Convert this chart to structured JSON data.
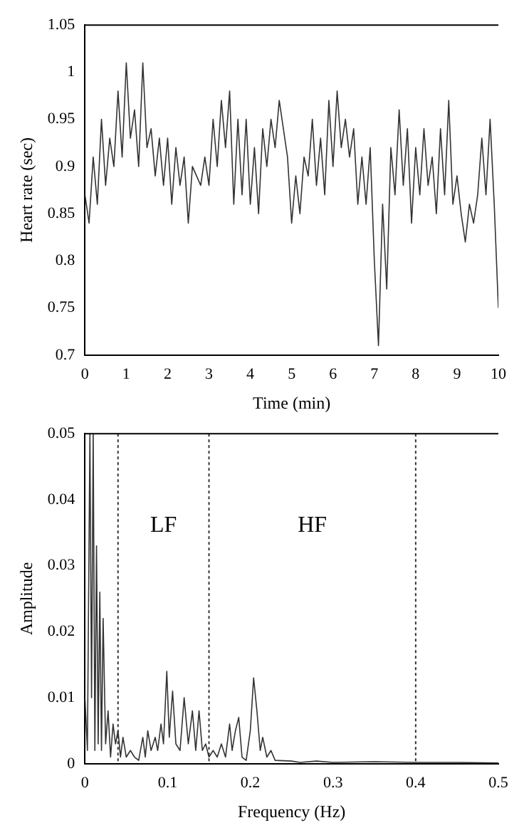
{
  "chart_data": [
    {
      "type": "line",
      "xlabel": "Time (min)",
      "ylabel": "Heart rate (sec)",
      "x": [
        0,
        0.1,
        0.2,
        0.3,
        0.4,
        0.5,
        0.6,
        0.7,
        0.8,
        0.9,
        1,
        1.1,
        1.2,
        1.3,
        1.4,
        1.5,
        1.6,
        1.7,
        1.8,
        1.9,
        2,
        2.1,
        2.2,
        2.3,
        2.4,
        2.5,
        2.6,
        2.7,
        2.8,
        2.9,
        3,
        3.1,
        3.2,
        3.3,
        3.4,
        3.5,
        3.6,
        3.7,
        3.8,
        3.9,
        4,
        4.1,
        4.2,
        4.3,
        4.4,
        4.5,
        4.6,
        4.7,
        4.8,
        4.9,
        5,
        5.1,
        5.2,
        5.3,
        5.4,
        5.5,
        5.6,
        5.7,
        5.8,
        5.9,
        6,
        6.1,
        6.2,
        6.3,
        6.4,
        6.5,
        6.6,
        6.7,
        6.8,
        6.9,
        7,
        7.1,
        7.2,
        7.3,
        7.4,
        7.5,
        7.6,
        7.7,
        7.8,
        7.9,
        8,
        8.1,
        8.2,
        8.3,
        8.4,
        8.5,
        8.6,
        8.7,
        8.8,
        8.9,
        9,
        9.1,
        9.2,
        9.3,
        9.4,
        9.5,
        9.6,
        9.7,
        9.8,
        9.9,
        10
      ],
      "series": [
        {
          "color": "#333333",
          "values": [
            0.87,
            0.84,
            0.91,
            0.86,
            0.95,
            0.88,
            0.93,
            0.9,
            0.98,
            0.91,
            1.01,
            0.93,
            0.96,
            0.9,
            1.01,
            0.92,
            0.94,
            0.89,
            0.93,
            0.88,
            0.93,
            0.86,
            0.92,
            0.88,
            0.91,
            0.84,
            0.9,
            0.89,
            0.88,
            0.91,
            0.88,
            0.95,
            0.9,
            0.97,
            0.92,
            0.98,
            0.86,
            0.95,
            0.87,
            0.95,
            0.86,
            0.92,
            0.85,
            0.94,
            0.9,
            0.95,
            0.92,
            0.97,
            0.94,
            0.91,
            0.84,
            0.89,
            0.85,
            0.91,
            0.89,
            0.95,
            0.88,
            0.93,
            0.87,
            0.97,
            0.9,
            0.98,
            0.92,
            0.95,
            0.91,
            0.94,
            0.86,
            0.91,
            0.86,
            0.92,
            0.8,
            0.71,
            0.86,
            0.77,
            0.92,
            0.87,
            0.96,
            0.88,
            0.94,
            0.84,
            0.92,
            0.87,
            0.94,
            0.88,
            0.91,
            0.85,
            0.94,
            0.87,
            0.97,
            0.86,
            0.89,
            0.85,
            0.82,
            0.86,
            0.84,
            0.87,
            0.93,
            0.87,
            0.95,
            0.86,
            0.75
          ]
        }
      ],
      "xlim": [
        0,
        10
      ],
      "xticks": [
        0,
        1,
        2,
        3,
        4,
        5,
        6,
        7,
        8,
        9,
        10
      ],
      "ylim": [
        0.7,
        1.05
      ],
      "yticks": [
        0.7,
        0.75,
        0.8,
        0.85,
        0.9,
        0.95,
        1,
        1.05
      ],
      "grid": false,
      "legend": false,
      "marker": "none",
      "line_style": "solid"
    },
    {
      "type": "line",
      "xlabel": "Frequency (Hz)",
      "ylabel": "Amplitude",
      "x": [
        0,
        0.003,
        0.006,
        0.008,
        0.01,
        0.012,
        0.014,
        0.016,
        0.018,
        0.02,
        0.022,
        0.025,
        0.028,
        0.031,
        0.034,
        0.037,
        0.04,
        0.043,
        0.046,
        0.05,
        0.055,
        0.06,
        0.065,
        0.07,
        0.073,
        0.076,
        0.08,
        0.085,
        0.088,
        0.092,
        0.095,
        0.099,
        0.102,
        0.106,
        0.11,
        0.115,
        0.12,
        0.125,
        0.13,
        0.134,
        0.138,
        0.142,
        0.146,
        0.15,
        0.155,
        0.16,
        0.165,
        0.17,
        0.175,
        0.178,
        0.182,
        0.186,
        0.19,
        0.195,
        0.2,
        0.204,
        0.208,
        0.212,
        0.215,
        0.22,
        0.225,
        0.23,
        0.25,
        0.26,
        0.28,
        0.3,
        0.35,
        0.4,
        0.45,
        0.5
      ],
      "series": [
        {
          "color": "#333333",
          "values": [
            0.01,
            0.002,
            0.05,
            0.01,
            0.05,
            0.002,
            0.033,
            0.003,
            0.026,
            0.002,
            0.022,
            0.003,
            0.008,
            0.001,
            0.006,
            0.003,
            0.005,
            0.001,
            0.004,
            0.001,
            0.002,
            0.001,
            0.0005,
            0.004,
            0.001,
            0.005,
            0.002,
            0.004,
            0.002,
            0.006,
            0.003,
            0.014,
            0.004,
            0.011,
            0.003,
            0.002,
            0.01,
            0.003,
            0.008,
            0.002,
            0.008,
            0.002,
            0.003,
            0.001,
            0.002,
            0.001,
            0.003,
            0.001,
            0.006,
            0.002,
            0.005,
            0.007,
            0.001,
            0.0005,
            0.005,
            0.013,
            0.008,
            0.002,
            0.004,
            0.001,
            0.002,
            0.0005,
            0.0004,
            0.0002,
            0.0004,
            0.0002,
            0.0003,
            0.0002,
            0.0002,
            0.0001
          ]
        }
      ],
      "xlim": [
        0,
        0.5
      ],
      "xticks": [
        0,
        0.1,
        0.2,
        0.3,
        0.4,
        0.5
      ],
      "ylim": [
        0,
        0.05
      ],
      "yticks": [
        0,
        0.01,
        0.02,
        0.03,
        0.04,
        0.05
      ],
      "grid": false,
      "legend": false,
      "marker": "none",
      "line_style": "solid",
      "ref_lines": [
        {
          "axis": "x",
          "value": 0.04,
          "line_style": "dotted",
          "color": "#333333"
        },
        {
          "axis": "x",
          "value": 0.15,
          "line_style": "dotted",
          "color": "#333333"
        },
        {
          "axis": "x",
          "value": 0.4,
          "line_style": "dotted",
          "color": "#333333"
        }
      ],
      "annotations": [
        "LF",
        "HF"
      ]
    }
  ]
}
